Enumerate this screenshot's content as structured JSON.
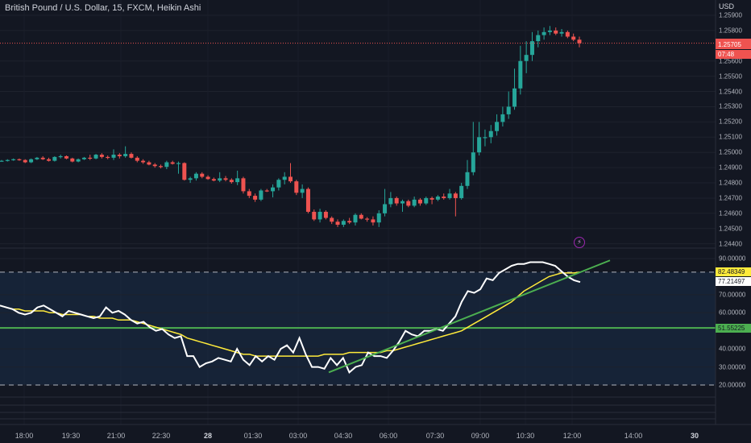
{
  "header": {
    "title": "British Pound / U.S. Dollar, 15, FXCM, Heikin Ashi",
    "currency": "USD"
  },
  "colors": {
    "background": "#131722",
    "up": "#26a69a",
    "down": "#ef5350",
    "rsi_line": "#ffffff",
    "rsi_ma": "#ffeb3b",
    "trend_line": "#4caf50",
    "level_line": "#4caf50",
    "band_fill": "#1e3a5f"
  },
  "price_axis": {
    "ticks": [
      "1.25900",
      "1.25800",
      "1.25600",
      "1.25500",
      "1.25400",
      "1.25300",
      "1.25200",
      "1.25100",
      "1.25000",
      "1.24900",
      "1.24800",
      "1.24700",
      "1.24600",
      "1.24500",
      "1.24400"
    ],
    "badges": [
      {
        "text": "1.25717",
        "color": "#ef5350",
        "price": 1.25717
      },
      {
        "text": "1.25705",
        "color": "#ef5350",
        "price": 1.25705
      },
      {
        "text": "07:48",
        "color": "#ef5350",
        "price": 1.25645
      }
    ]
  },
  "indicator_axis": {
    "ticks": [
      "90.00000",
      "70.00000",
      "60.00000",
      "40.00000",
      "30.00000",
      "20.00000"
    ],
    "badges": [
      {
        "text": "82.48349",
        "bg": "#ffeb3b",
        "fg": "#131722",
        "value": 82.5
      },
      {
        "text": "77.21497",
        "bg": "#ffffff",
        "fg": "#131722",
        "value": 77.2
      },
      {
        "text": "51.55225",
        "bg": "#4caf50",
        "fg": "#131722",
        "value": 51.6
      }
    ],
    "upper_band": 82.5,
    "lower_band": 20,
    "level_line": 51.6
  },
  "time_axis": {
    "labels": [
      {
        "text": "18:00",
        "bold": false
      },
      {
        "text": "19:30",
        "bold": false
      },
      {
        "text": "21:00",
        "bold": false
      },
      {
        "text": "22:30",
        "bold": false
      },
      {
        "text": "28",
        "bold": true
      },
      {
        "text": "01:30",
        "bold": false
      },
      {
        "text": "03:00",
        "bold": false
      },
      {
        "text": "04:30",
        "bold": false
      },
      {
        "text": "06:00",
        "bold": false
      },
      {
        "text": "07:30",
        "bold": false
      },
      {
        "text": "09:00",
        "bold": false
      },
      {
        "text": "10:30",
        "bold": false
      },
      {
        "text": "12:00",
        "bold": false
      },
      {
        "text": "14:00",
        "bold": false
      },
      {
        "text": "30",
        "bold": true
      }
    ]
  },
  "icons": {
    "alert": "lightning-icon"
  },
  "chart_data": [
    {
      "type": "candlestick",
      "title": "British Pound / U.S. Dollar, 15, FXCM, Heikin Ashi",
      "ylim": [
        1.2437,
        1.2594
      ],
      "candles": [
        [
          1.24945,
          1.2495,
          1.2494,
          1.24945
        ],
        [
          1.24945,
          1.24955,
          1.2494,
          1.2495
        ],
        [
          1.2495,
          1.2496,
          1.24945,
          1.24955
        ],
        [
          1.24955,
          1.2496,
          1.24945,
          1.2495
        ],
        [
          1.2495,
          1.24955,
          1.2493,
          1.24935
        ],
        [
          1.24935,
          1.2496,
          1.2493,
          1.24955
        ],
        [
          1.24955,
          1.2497,
          1.2495,
          1.24965
        ],
        [
          1.24965,
          1.24975,
          1.2495,
          1.24955
        ],
        [
          1.24955,
          1.24965,
          1.2494,
          1.24945
        ],
        [
          1.24945,
          1.24975,
          1.2494,
          1.2497
        ],
        [
          1.2497,
          1.24985,
          1.2496,
          1.24975
        ],
        [
          1.24975,
          1.2498,
          1.24955,
          1.2496
        ],
        [
          1.2496,
          1.24965,
          1.24935,
          1.2494
        ],
        [
          1.2494,
          1.2496,
          1.24935,
          1.24955
        ],
        [
          1.24955,
          1.2497,
          1.2495,
          1.24965
        ],
        [
          1.24965,
          1.24985,
          1.2495,
          1.2496
        ],
        [
          1.2496,
          1.2499,
          1.24955,
          1.24985
        ],
        [
          1.24985,
          1.24995,
          1.2496,
          1.2497
        ],
        [
          1.2497,
          1.2498,
          1.24955,
          1.24965
        ],
        [
          1.24965,
          1.2502,
          1.2495,
          1.24985
        ],
        [
          1.24985,
          1.24995,
          1.2496,
          1.24975
        ],
        [
          1.24975,
          1.2504,
          1.24965,
          1.2499
        ],
        [
          1.2499,
          1.25,
          1.2496,
          1.24965
        ],
        [
          1.24965,
          1.24975,
          1.24935,
          1.24945
        ],
        [
          1.24945,
          1.24955,
          1.24925,
          1.24935
        ],
        [
          1.24935,
          1.24945,
          1.24915,
          1.2492
        ],
        [
          1.2492,
          1.2493,
          1.249,
          1.2491
        ],
        [
          1.2491,
          1.2492,
          1.24895,
          1.24905
        ],
        [
          1.24905,
          1.24945,
          1.2489,
          1.24935
        ],
        [
          1.24935,
          1.24945,
          1.2492,
          1.24925
        ],
        [
          1.24925,
          1.2494,
          1.2486,
          1.2493
        ],
        [
          1.2493,
          1.24935,
          1.24815,
          1.2482
        ],
        [
          1.2482,
          1.2484,
          1.248,
          1.2483
        ],
        [
          1.2483,
          1.2487,
          1.24815,
          1.2486
        ],
        [
          1.2486,
          1.2487,
          1.2483,
          1.2484
        ],
        [
          1.2484,
          1.2485,
          1.2482,
          1.24825
        ],
        [
          1.24825,
          1.24835,
          1.2481,
          1.24815
        ],
        [
          1.24815,
          1.2487,
          1.24805,
          1.2483
        ],
        [
          1.2483,
          1.24845,
          1.2481,
          1.2482
        ],
        [
          1.2482,
          1.2483,
          1.24795,
          1.24805
        ],
        [
          1.24805,
          1.2488,
          1.24785,
          1.2483
        ],
        [
          1.2483,
          1.2484,
          1.2473,
          1.24745
        ],
        [
          1.24745,
          1.2476,
          1.247,
          1.24715
        ],
        [
          1.24715,
          1.2473,
          1.24675,
          1.2469
        ],
        [
          1.2469,
          1.2476,
          1.2468,
          1.2475
        ],
        [
          1.2475,
          1.2476,
          1.2474,
          1.24745
        ],
        [
          1.24745,
          1.2479,
          1.24705,
          1.2477
        ],
        [
          1.2477,
          1.2483,
          1.2475,
          1.2482
        ],
        [
          1.2482,
          1.2487,
          1.2479,
          1.2484
        ],
        [
          1.2484,
          1.2493,
          1.248,
          1.2481
        ],
        [
          1.2481,
          1.2482,
          1.2472,
          1.24735
        ],
        [
          1.24735,
          1.2479,
          1.247,
          1.2476
        ],
        [
          1.2476,
          1.2477,
          1.246,
          1.2461
        ],
        [
          1.2461,
          1.24625,
          1.2455,
          1.2456
        ],
        [
          1.2456,
          1.2463,
          1.2454,
          1.2461
        ],
        [
          1.2461,
          1.2462,
          1.2456,
          1.2457
        ],
        [
          1.2457,
          1.2458,
          1.2453,
          1.24545
        ],
        [
          1.24545,
          1.2456,
          1.2451,
          1.24525
        ],
        [
          1.24525,
          1.2456,
          1.2451,
          1.2455
        ],
        [
          1.2455,
          1.2457,
          1.2453,
          1.2454
        ],
        [
          1.2454,
          1.246,
          1.2452,
          1.2459
        ],
        [
          1.2459,
          1.246,
          1.2456,
          1.24565
        ],
        [
          1.24565,
          1.24575,
          1.24545,
          1.2456
        ],
        [
          1.2456,
          1.2458,
          1.2452,
          1.2454
        ],
        [
          1.2454,
          1.2462,
          1.2451,
          1.246
        ],
        [
          1.246,
          1.2476,
          1.2458,
          1.2466
        ],
        [
          1.2466,
          1.2474,
          1.2464,
          1.247
        ],
        [
          1.247,
          1.2471,
          1.2465,
          1.24665
        ],
        [
          1.24665,
          1.2469,
          1.2461,
          1.2468
        ],
        [
          1.2468,
          1.2469,
          1.2464,
          1.2465
        ],
        [
          1.2465,
          1.2471,
          1.2464,
          1.2469
        ],
        [
          1.2469,
          1.247,
          1.2465,
          1.24665
        ],
        [
          1.24665,
          1.2471,
          1.24655,
          1.247
        ],
        [
          1.247,
          1.2471,
          1.2466,
          1.2469
        ],
        [
          1.2469,
          1.2472,
          1.2468,
          1.2471
        ],
        [
          1.2471,
          1.2473,
          1.2469,
          1.247
        ],
        [
          1.247,
          1.2476,
          1.2469,
          1.2473
        ],
        [
          1.2473,
          1.2474,
          1.2458,
          1.247
        ],
        [
          1.247,
          1.248,
          1.2469,
          1.2478
        ],
        [
          1.2478,
          1.2495,
          1.2476,
          1.2487
        ],
        [
          1.2487,
          1.252,
          1.2485,
          1.25
        ],
        [
          1.25,
          1.252,
          1.2498,
          1.251
        ],
        [
          1.251,
          1.2515,
          1.2504,
          1.251
        ],
        [
          1.251,
          1.2518,
          1.2506,
          1.2514
        ],
        [
          1.2514,
          1.2525,
          1.2511,
          1.252
        ],
        [
          1.252,
          1.253,
          1.2517,
          1.2525
        ],
        [
          1.2525,
          1.254,
          1.2522,
          1.253
        ],
        [
          1.253,
          1.2555,
          1.2528,
          1.2542
        ],
        [
          1.2542,
          1.257,
          1.2538,
          1.256
        ],
        [
          1.256,
          1.2573,
          1.2552,
          1.2564
        ],
        [
          1.2564,
          1.2579,
          1.256,
          1.2573
        ],
        [
          1.2573,
          1.258,
          1.2569,
          1.2577
        ],
        [
          1.2577,
          1.2582,
          1.2574,
          1.2579
        ],
        [
          1.2579,
          1.2583,
          1.2577,
          1.258
        ],
        [
          1.258,
          1.2582,
          1.2577,
          1.2578
        ],
        [
          1.2578,
          1.2581,
          1.2576,
          1.2579
        ],
        [
          1.2579,
          1.258,
          1.2575,
          1.2576
        ],
        [
          1.2576,
          1.2578,
          1.2573,
          1.2574
        ],
        [
          1.2574,
          1.2576,
          1.2569,
          1.25717
        ]
      ]
    },
    {
      "type": "line",
      "ylim": [
        15,
        92
      ],
      "series": [
        {
          "values": [
            64,
            63,
            62,
            60,
            59,
            60,
            63,
            64,
            62,
            60,
            58,
            61,
            60,
            59,
            58,
            57,
            58,
            63,
            60,
            61,
            59,
            56,
            54,
            55,
            52,
            50,
            51,
            48,
            46,
            47,
            36,
            36,
            30,
            32,
            33,
            35,
            34,
            33,
            40,
            34,
            31,
            36,
            33,
            36,
            34,
            40,
            42,
            38,
            46,
            37,
            30,
            30,
            29,
            35,
            31,
            35,
            27,
            30,
            31,
            38,
            36,
            36,
            35,
            39,
            44,
            50,
            48,
            47,
            50,
            50,
            51,
            50,
            54,
            58,
            66,
            72,
            71,
            73,
            79,
            78,
            82,
            84,
            86,
            87,
            87,
            88,
            88,
            88,
            87,
            86,
            83,
            80,
            78,
            77
          ]
        },
        {
          "values": [
            64,
            63,
            62,
            62,
            61,
            61,
            61,
            61,
            60,
            60,
            59,
            59,
            59,
            59,
            58,
            58,
            57,
            57,
            57,
            56,
            56,
            56,
            55,
            54,
            53,
            52,
            51,
            50,
            49,
            48,
            46,
            45,
            44,
            43,
            42,
            41,
            40,
            39,
            38,
            37,
            37,
            36,
            36,
            36,
            36,
            36,
            36,
            36,
            36,
            36,
            36,
            36,
            37,
            37,
            37,
            37,
            38,
            38,
            38,
            38,
            38,
            38,
            39,
            39,
            40,
            41,
            42,
            43,
            44,
            45,
            46,
            47,
            48,
            49,
            50,
            52,
            54,
            56,
            58,
            60,
            62,
            64,
            66,
            69,
            72,
            74,
            76,
            78,
            80,
            81,
            82,
            82,
            82,
            82.5
          ]
        },
        {
          "values": [
            27,
            89
          ]
        }
      ]
    }
  ]
}
